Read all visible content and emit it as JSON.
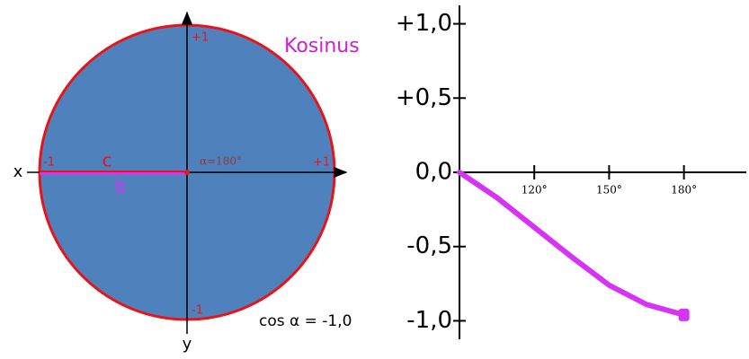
{
  "diagram": {
    "x_axis": "x",
    "y_axis": "y",
    "top": "+1",
    "bottom": "-1",
    "left": "-1",
    "right": "+1",
    "hypotenuse": "c",
    "adjacent": "b",
    "angle": "α=180°",
    "title": "Kosinus",
    "result": "cos α = -1,0"
  },
  "chart_data": {
    "type": "line",
    "x": [
      90,
      105,
      120,
      135,
      150,
      165,
      180
    ],
    "series": [
      {
        "color": "#d633f5",
        "values": [
          0,
          -0.17,
          -0.37,
          -0.57,
          -0.76,
          -0.89,
          -0.96
        ]
      }
    ],
    "xlim": [
      90,
      205
    ],
    "ylim": [
      -1.1,
      1.1
    ],
    "xticks": [
      {
        "value": 120,
        "label": "120°"
      },
      {
        "value": 150,
        "label": "150°"
      },
      {
        "value": 180,
        "label": "180°"
      }
    ],
    "yticks": [
      {
        "value": 1,
        "label": "+1,0"
      },
      {
        "value": 0.5,
        "label": "+0,5"
      },
      {
        "value": 0,
        "label": "0,0"
      },
      {
        "value": -0.5,
        "label": "-0,5"
      },
      {
        "value": -1,
        "label": "-1,0"
      }
    ]
  }
}
